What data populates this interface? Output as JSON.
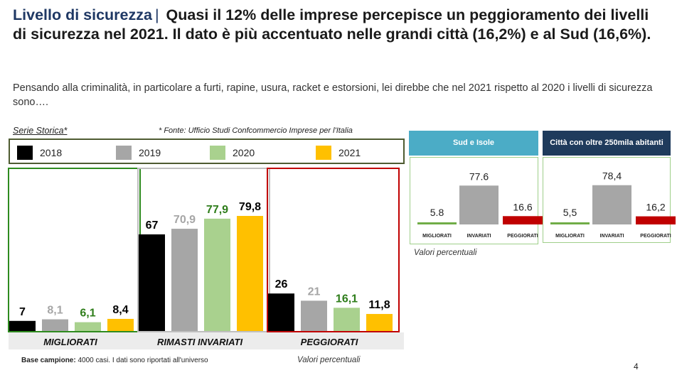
{
  "header": {
    "title_prefix": "Livello di sicurezza",
    "title_sep": "|",
    "title_main": "Quasi il 12% delle imprese percepisce un peggioramento dei livelli di sicurezza nel 2021. Il dato è più accentuato nelle grandi città (16,2%) e al Sud (16,6%).",
    "subtitle": "Pensando alla criminalità, in particolare a furti, rapine, usura, racket e estorsioni, lei direbbe che nel 2021 rispetto al 2020 i livelli di sicurezza sono…."
  },
  "notes": {
    "serie": "Serie Storica*",
    "fonte": "* Fonte: Ufficio Studi Confcommercio Imprese per l'Italia",
    "base_label": "Base campione:",
    "base_text": " 4000 casi. I dati sono riportati all'universo",
    "valori_main": "Valori percentuali",
    "valori_side": "Valori percentuali",
    "page": "4"
  },
  "legend": [
    {
      "label": "2018",
      "color": "#000000"
    },
    {
      "label": "2019",
      "color": "#a6a6a6"
    },
    {
      "label": "2020",
      "color": "#a9d18e"
    },
    {
      "label": "2021",
      "color": "#ffc000"
    }
  ],
  "chart_data": [
    {
      "type": "bar",
      "categories": [
        "MIGLIORATI",
        "RIMASTI INVARIATI",
        "PEGGIORATI"
      ],
      "series": [
        {
          "name": "2018",
          "values": [
            7,
            67,
            26
          ],
          "labels": [
            "7",
            "67",
            "26"
          ],
          "color": "#000000",
          "label_color": "#000000"
        },
        {
          "name": "2019",
          "values": [
            8.1,
            70.9,
            21
          ],
          "labels": [
            "8,1",
            "70,9",
            "21"
          ],
          "color": "#a6a6a6",
          "label_color": "#a6a6a6"
        },
        {
          "name": "2020",
          "values": [
            6.1,
            77.9,
            16.1
          ],
          "labels": [
            "6,1",
            "77,9",
            "16,1"
          ],
          "color": "#a9d18e",
          "label_color": "#2e7d1a"
        },
        {
          "name": "2021",
          "values": [
            8.4,
            79.8,
            11.8
          ],
          "labels": [
            "8,4",
            "79,8",
            "11,8"
          ],
          "color": "#ffc000",
          "label_color": "#000000"
        }
      ],
      "box_colors": [
        "#2e8b1f",
        "#bfbfbf",
        "#c00000"
      ],
      "ylim": [
        0,
        100
      ]
    },
    {
      "type": "bar",
      "title": "Sud e Isole",
      "title_bg": "#4bacc6",
      "categories": [
        "MIGLIORATI",
        "INVARIATI",
        "PEGGIORATI"
      ],
      "values": [
        5.8,
        77.6,
        16.6
      ],
      "labels": [
        "5.8",
        "77.6",
        "16.6"
      ],
      "colors": [
        "#70ad47",
        "#a6a6a6",
        "#c00000"
      ],
      "ylim": [
        0,
        100
      ]
    },
    {
      "type": "bar",
      "title": "Città con oltre 250mila abitanti",
      "title_bg": "#1f3b5c",
      "categories": [
        "MIGLIORATI",
        "INVARIATI",
        "PEGGIORATI"
      ],
      "values": [
        5.5,
        78.4,
        16.2
      ],
      "labels": [
        "5,5",
        "78,4",
        "16,2"
      ],
      "colors": [
        "#70ad47",
        "#a6a6a6",
        "#c00000"
      ],
      "ylim": [
        0,
        100
      ]
    }
  ]
}
